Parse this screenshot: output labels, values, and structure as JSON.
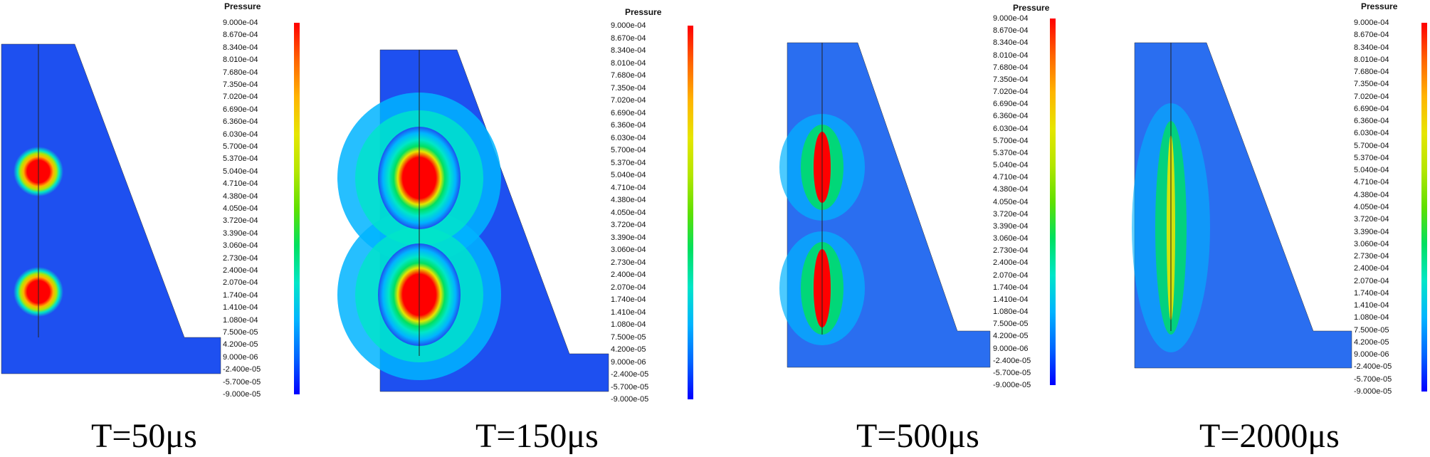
{
  "legend": {
    "title": "Pressure",
    "ticks": [
      "9.000e-04",
      "8.670e-04",
      "8.340e-04",
      "8.010e-04",
      "7.680e-04",
      "7.350e-04",
      "7.020e-04",
      "6.690e-04",
      "6.360e-04",
      "6.030e-04",
      "5.700e-04",
      "5.370e-04",
      "5.040e-04",
      "4.710e-04",
      "4.380e-04",
      "4.050e-04",
      "3.720e-04",
      "3.390e-04",
      "3.060e-04",
      "2.730e-04",
      "2.400e-04",
      "2.070e-04",
      "1.740e-04",
      "1.410e-04",
      "1.080e-04",
      "7.500e-05",
      "4.200e-05",
      "9.000e-06",
      "-2.400e-05",
      "-5.700e-05",
      "-9.000e-05"
    ],
    "colors": [
      "#0000ff",
      "#0066ff",
      "#00b4ff",
      "#00e6c8",
      "#00e060",
      "#60e000",
      "#b4e600",
      "#e6e600",
      "#ffb400",
      "#ff6400",
      "#ff0000"
    ]
  },
  "panels": [
    {
      "caption": "T=50μs",
      "field_color": "#1e50f0"
    },
    {
      "caption": "T=150μs",
      "field_color": "#1e50f0"
    },
    {
      "caption": "T=500μs",
      "field_color": "#2a6ef0"
    },
    {
      "caption": "T=2000μs",
      "field_color": "#2a6ef0"
    }
  ]
}
